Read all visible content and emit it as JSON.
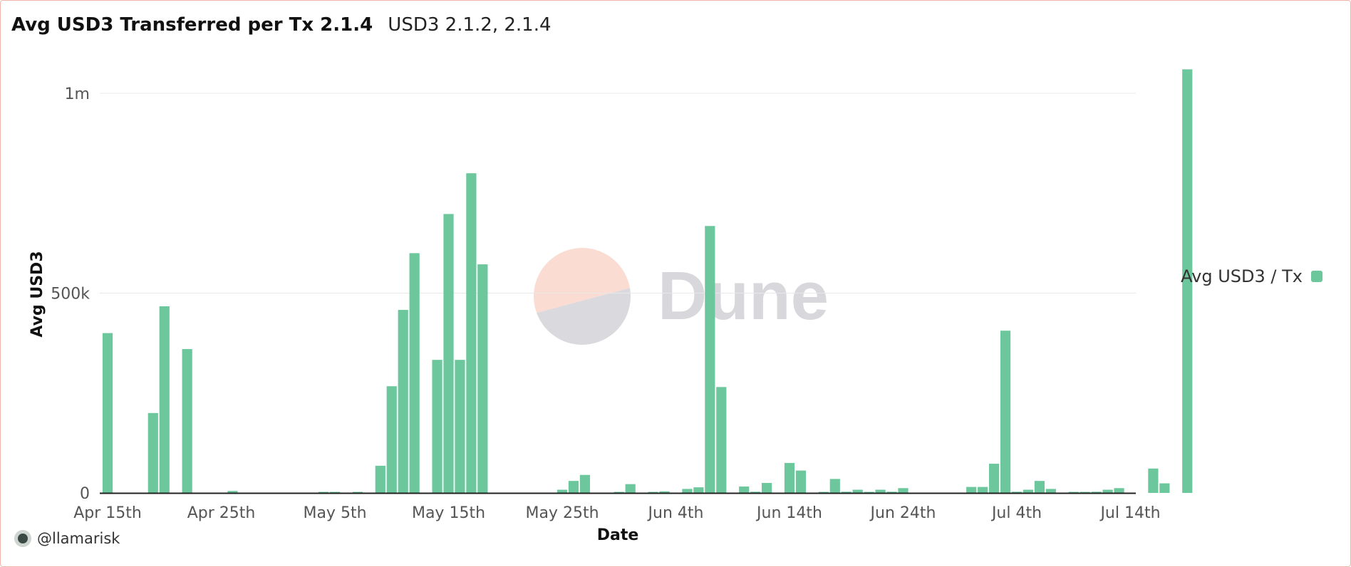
{
  "header": {
    "title": "Avg USD3 Transferred per Tx 2.1.4",
    "subtitle": "USD3 2.1.2, 2.1.4"
  },
  "footer": {
    "author": "@llamarisk"
  },
  "watermark": {
    "text": "Dune"
  },
  "colors": {
    "bar": "#6cc79c",
    "grid": "#e8e8e8",
    "axis": "#222222",
    "watermark_pie_top": "#fbdcd3",
    "watermark_pie_bottom": "#d9d9de",
    "watermark_text": "#d8d8dc"
  },
  "chart_data": {
    "type": "bar",
    "xlabel": "Date",
    "ylabel": "Avg USD3",
    "ylim": [
      0,
      1130000
    ],
    "y_ticks": [
      {
        "value": 0,
        "label": "0"
      },
      {
        "value": 500000,
        "label": "500k"
      },
      {
        "value": 1000000,
        "label": "1m"
      }
    ],
    "x_ticks": [
      "Apr 15th",
      "Apr 25th",
      "May 5th",
      "May 15th",
      "May 25th",
      "Jun 4th",
      "Jun 14th",
      "Jun 24th",
      "Jul 4th",
      "Jul 14th"
    ],
    "grid": true,
    "legend": {
      "position": "right",
      "entries": [
        "Avg USD3 / Tx"
      ]
    },
    "series": [
      {
        "name": "Avg USD3 / Tx",
        "start_date": "Apr 15th",
        "values": [
          400000,
          0,
          0,
          0,
          200000,
          467000,
          0,
          360000,
          0,
          0,
          0,
          5000,
          0,
          0,
          0,
          0,
          0,
          0,
          0,
          1000,
          1000,
          0,
          2000,
          0,
          68000,
          267000,
          458000,
          600000,
          0,
          333000,
          698000,
          333000,
          800000,
          572000,
          0,
          0,
          0,
          0,
          0,
          0,
          8000,
          30000,
          45000,
          0,
          0,
          2000,
          22000,
          0,
          2000,
          4000,
          0,
          10000,
          14000,
          668000,
          265000,
          0,
          16000,
          3000,
          25000,
          0,
          75000,
          56000,
          0,
          2000,
          35000,
          3000,
          8000,
          2000,
          8000,
          3000,
          12000,
          0,
          0,
          0,
          0,
          0,
          15000,
          15000,
          73000,
          406000,
          3000,
          8000,
          30000,
          10000,
          0,
          2000,
          2000,
          3000,
          8000,
          12000,
          0,
          0,
          61000,
          24000,
          0,
          1060000
        ]
      }
    ]
  }
}
